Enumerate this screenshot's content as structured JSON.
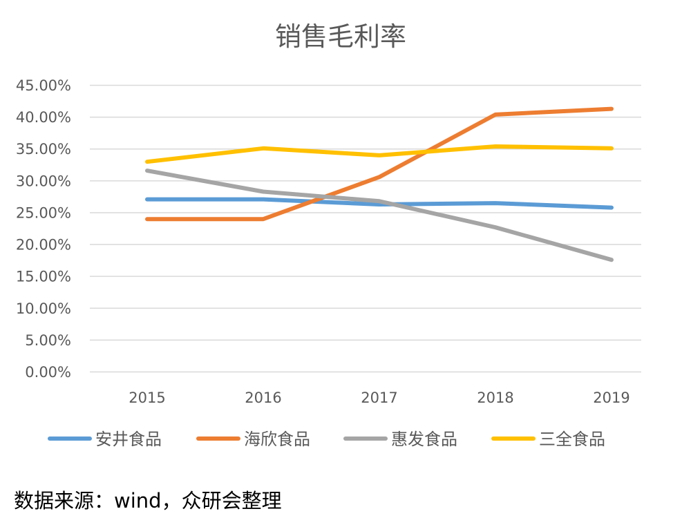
{
  "chart_data": {
    "type": "line",
    "title": "销售毛利率",
    "xlabel": "",
    "ylabel": "",
    "categories": [
      "2015",
      "2016",
      "2017",
      "2018",
      "2019"
    ],
    "ylim": [
      0,
      45
    ],
    "y_ticks": [
      0,
      5,
      10,
      15,
      20,
      25,
      30,
      35,
      40,
      45
    ],
    "y_tick_labels": [
      "0.00%",
      "5.00%",
      "10.00%",
      "15.00%",
      "20.00%",
      "25.00%",
      "30.00%",
      "35.00%",
      "40.00%",
      "45.00%"
    ],
    "grid": true,
    "legend_position": "bottom",
    "series": [
      {
        "name": "安井食品",
        "color": "#5B9BD5",
        "values": [
          27.1,
          27.1,
          26.3,
          26.5,
          25.8
        ]
      },
      {
        "name": "海欣食品",
        "color": "#ED7D31",
        "values": [
          24.0,
          24.0,
          30.6,
          40.4,
          41.3
        ]
      },
      {
        "name": "惠发食品",
        "color": "#A5A5A5",
        "values": [
          31.6,
          28.3,
          26.8,
          22.7,
          17.6
        ]
      },
      {
        "name": "三全食品",
        "color": "#FFC000",
        "values": [
          33.0,
          35.1,
          34.0,
          35.4,
          35.1
        ]
      }
    ]
  },
  "source_note": "数据来源：wind，众研会整理"
}
